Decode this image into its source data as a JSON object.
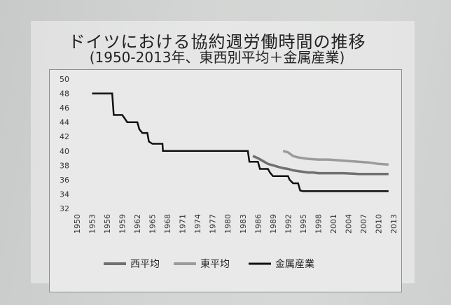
{
  "chart_data": {
    "type": "line",
    "title": "ドイツにおける協約週労働時間の推移",
    "subtitle": "(1950-2013年、東西別平均＋金属産業)",
    "xlabel": "",
    "ylabel": "",
    "ylim": [
      32,
      50
    ],
    "xlim": [
      1950,
      2013
    ],
    "yticks": [
      "32",
      "34",
      "36",
      "38",
      "40",
      "42",
      "44",
      "46",
      "48",
      "50"
    ],
    "xticks": [
      "1950",
      "1953",
      "1956",
      "1959",
      "1962",
      "1965",
      "1968",
      "1971",
      "1974",
      "1977",
      "1980",
      "1983",
      "1986",
      "1989",
      "1992",
      "1995",
      "1998",
      "2001",
      "2004",
      "2007",
      "2010",
      "2013"
    ],
    "grid": false,
    "legend_position": "bottom",
    "series": [
      {
        "name": "西平均",
        "color": "#6f7070",
        "width": 3.5,
        "step": false,
        "points": [
          [
            1985,
            39.3
          ],
          [
            1986,
            39.0
          ],
          [
            1987,
            38.6
          ],
          [
            1988,
            38.2
          ],
          [
            1989,
            38.0
          ],
          [
            1990,
            37.8
          ],
          [
            1991,
            37.6
          ],
          [
            1992,
            37.5
          ],
          [
            1993,
            37.3
          ],
          [
            1994,
            37.2
          ],
          [
            1995,
            37.1
          ],
          [
            1996,
            37.0
          ],
          [
            1997,
            37.0
          ],
          [
            1998,
            36.9
          ],
          [
            2000,
            36.9
          ],
          [
            2003,
            36.9
          ],
          [
            2006,
            36.8
          ],
          [
            2009,
            36.8
          ],
          [
            2012,
            36.8
          ]
        ]
      },
      {
        "name": "東平均",
        "color": "#9a9c9c",
        "width": 3.5,
        "step": false,
        "points": [
          [
            1991,
            40.0
          ],
          [
            1992,
            39.8
          ],
          [
            1993,
            39.3
          ],
          [
            1994,
            39.1
          ],
          [
            1995,
            39.0
          ],
          [
            1996,
            38.9
          ],
          [
            1998,
            38.8
          ],
          [
            2000,
            38.8
          ],
          [
            2002,
            38.7
          ],
          [
            2004,
            38.6
          ],
          [
            2006,
            38.5
          ],
          [
            2008,
            38.4
          ],
          [
            2010,
            38.2
          ],
          [
            2012,
            38.1
          ]
        ]
      },
      {
        "name": "金属産業",
        "color": "#111111",
        "width": 2.5,
        "step": true,
        "points": [
          [
            1953,
            48
          ],
          [
            1957,
            48
          ],
          [
            1957.3,
            45
          ],
          [
            1959,
            45
          ],
          [
            1959.5,
            44.5
          ],
          [
            1960,
            44
          ],
          [
            1962,
            44
          ],
          [
            1962.4,
            43
          ],
          [
            1963,
            42.5
          ],
          [
            1964,
            42.5
          ],
          [
            1964.3,
            41.3
          ],
          [
            1965,
            41
          ],
          [
            1967,
            41
          ],
          [
            1967.1,
            40
          ],
          [
            1984,
            40
          ],
          [
            1984.3,
            38.5
          ],
          [
            1986,
            38.5
          ],
          [
            1986.4,
            37.5
          ],
          [
            1988,
            37.5
          ],
          [
            1988.4,
            37
          ],
          [
            1989,
            36.5
          ],
          [
            1992,
            36.5
          ],
          [
            1992.3,
            36
          ],
          [
            1993,
            35.5
          ],
          [
            1994,
            35.5
          ],
          [
            1994.4,
            34.5
          ],
          [
            1995,
            34.4
          ],
          [
            2012,
            34.4
          ]
        ]
      }
    ]
  }
}
